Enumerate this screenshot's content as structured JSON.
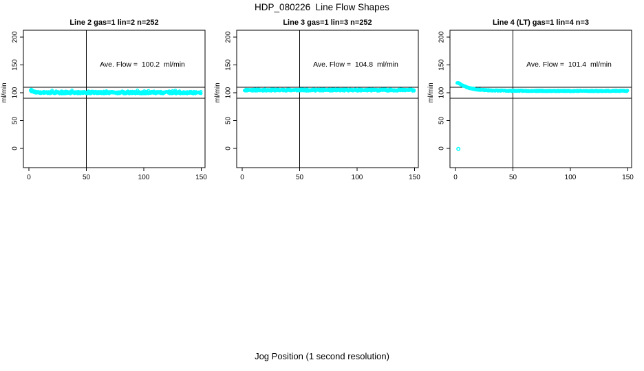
{
  "figure": {
    "title": "HDP_080226  Line Flow Shapes",
    "xlabel": "Jog Position (1 second resolution)",
    "background": "#ffffff",
    "text_color": "#000000"
  },
  "chart_data": [
    {
      "type": "scatter",
      "title": "Line 2 gas=1 lin=2 n=252",
      "n": 252,
      "ave_flow_ml_min": 100.2,
      "annotation": "Ave. Flow =  100.2  ml/min",
      "ylabel": "ml/min",
      "xticks": [
        0,
        50,
        100,
        150
      ],
      "yticks": [
        0,
        50,
        100,
        150,
        200
      ],
      "xlim": [
        -4.8,
        153.3
      ],
      "ylim": [
        -34.6,
        212.3
      ],
      "ref_hlines": [
        90,
        110
      ],
      "ref_vlines": [
        50
      ],
      "point_color": "#00ffff",
      "grid": false,
      "flow_profile": [
        [
          1.5,
          104.5
        ],
        [
          3,
          103
        ],
        [
          5,
          101.5
        ],
        [
          7,
          100.7
        ],
        [
          10,
          100.2
        ],
        [
          150,
          100.2
        ]
      ],
      "band_halfwidth_ml_min": 1.9,
      "outliers": []
    },
    {
      "type": "scatter",
      "title": "Line 3 gas=1 lin=3 n=252",
      "n": 252,
      "ave_flow_ml_min": 104.8,
      "annotation": "Ave. Flow =  104.8  ml/min",
      "ylabel": "ml/min",
      "xticks": [
        0,
        50,
        100,
        150
      ],
      "yticks": [
        0,
        50,
        100,
        150,
        200
      ],
      "xlim": [
        -4.8,
        153.3
      ],
      "ylim": [
        -34.6,
        212.3
      ],
      "ref_hlines": [
        90,
        110
      ],
      "ref_vlines": [
        50
      ],
      "point_color": "#00ffff",
      "grid": false,
      "flow_profile": [
        [
          2,
          104.8
        ],
        [
          150,
          104.8
        ]
      ],
      "band_halfwidth_ml_min": 1.6,
      "outliers": []
    },
    {
      "type": "scatter",
      "title": "Line 4 (LT) gas=1 lin=4 n=3",
      "n": 3,
      "ave_flow_ml_min": 101.4,
      "annotation": "Ave. Flow =  101.4  ml/min",
      "ylabel": "ml/min",
      "xticks": [
        0,
        50,
        100,
        150
      ],
      "yticks": [
        0,
        50,
        100,
        150,
        200
      ],
      "xlim": [
        -4.8,
        153.3
      ],
      "ylim": [
        -34.6,
        212.3
      ],
      "ref_hlines": [
        90,
        110
      ],
      "ref_vlines": [
        50
      ],
      "point_color": "#00ffff",
      "grid": false,
      "flow_profile": [
        [
          1.5,
          118
        ],
        [
          3,
          117
        ],
        [
          5,
          114.5
        ],
        [
          8,
          111.5
        ],
        [
          11,
          109
        ],
        [
          14,
          107.5
        ],
        [
          18,
          106
        ],
        [
          24,
          104.8
        ],
        [
          30,
          104.2
        ],
        [
          45,
          103.6
        ],
        [
          80,
          103.2
        ],
        [
          150,
          103.2
        ]
      ],
      "band_halfwidth_ml_min": 0.9,
      "outliers": [
        [
          2.5,
          -1
        ]
      ]
    }
  ]
}
